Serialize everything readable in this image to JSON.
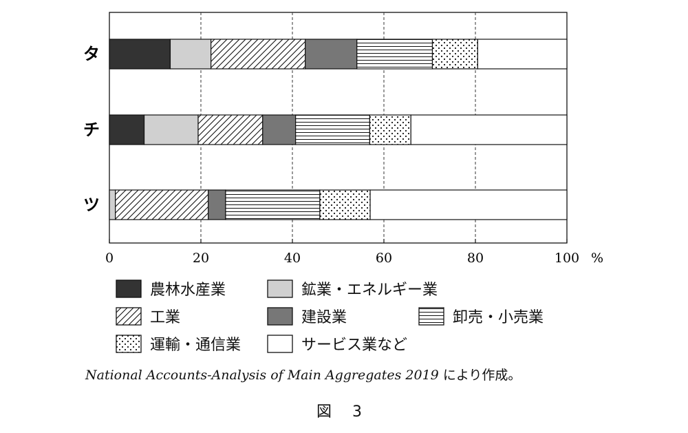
{
  "chart_data": {
    "type": "bar",
    "orientation": "horizontal",
    "stacked": true,
    "categories": [
      "タ",
      "チ",
      "ツ"
    ],
    "series": [
      {
        "name": "農林水産業",
        "values": [
          13.3,
          7.6,
          0
        ],
        "pattern": "solid-dark"
      },
      {
        "name": "鉱業・エネルギー業",
        "values": [
          8.9,
          11.8,
          1.3
        ],
        "pattern": "light-gray"
      },
      {
        "name": "工業",
        "values": [
          20.6,
          14.1,
          20.3
        ],
        "pattern": "diagonal-hatch"
      },
      {
        "name": "建設業",
        "values": [
          11.3,
          7.2,
          3.8
        ],
        "pattern": "medium-gray"
      },
      {
        "name": "卸売・小売業",
        "values": [
          16.5,
          16.2,
          20.6
        ],
        "pattern": "horizontal-lines"
      },
      {
        "name": "運輸・通信業",
        "values": [
          9.9,
          9.0,
          11.0
        ],
        "pattern": "dots"
      },
      {
        "name": "サービス業など",
        "values": [
          19.5,
          34.1,
          43.0
        ],
        "pattern": "white"
      }
    ],
    "xlim": [
      0,
      100
    ],
    "xticks": [
      "0",
      "20",
      "40",
      "60",
      "80",
      "100"
    ],
    "xunit": "%",
    "grid": "vertical-dashed"
  },
  "source_en": "National Accounts-Analysis of Main Aggregates 2019",
  "source_jp": "により作成。",
  "figure_label": "図　3",
  "colors": {
    "dark": "#333333",
    "light": "#d0d0d0",
    "medium": "#777777",
    "line": "#111111"
  }
}
